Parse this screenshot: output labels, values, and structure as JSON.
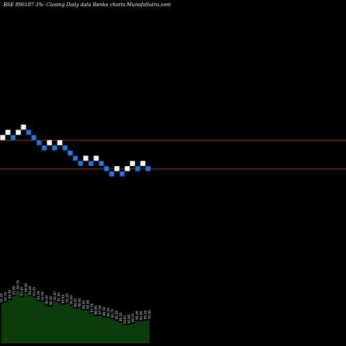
{
  "header": {
    "title": "BSE 890187 3%- Closing Daily data Renko charts MunafaSutra.com"
  },
  "colors": {
    "background": "#000000",
    "up_brick": "#ffffff",
    "down_brick": "#1e7be6",
    "brick_outline": "#0b3a8a",
    "level_line": "#8a3a14",
    "volume_fill": "#0b3d0b",
    "volume_label": "#ffffff"
  },
  "chart_data": [
    {
      "type": "renko",
      "title": "BSE 890187 3%- Closing Daily data Renko charts MunafaSutra.com",
      "bricks": [
        {
          "dir": "up",
          "level": 2
        },
        {
          "dir": "up",
          "level": 3
        },
        {
          "dir": "down",
          "level": 2
        },
        {
          "dir": "up",
          "level": 3
        },
        {
          "dir": "up",
          "level": 4
        },
        {
          "dir": "down",
          "level": 3
        },
        {
          "dir": "down",
          "level": 2
        },
        {
          "dir": "down",
          "level": 1
        },
        {
          "dir": "down",
          "level": 0
        },
        {
          "dir": "up",
          "level": 1
        },
        {
          "dir": "down",
          "level": 0
        },
        {
          "dir": "up",
          "level": 1
        },
        {
          "dir": "down",
          "level": 0
        },
        {
          "dir": "down",
          "level": -1
        },
        {
          "dir": "down",
          "level": -2
        },
        {
          "dir": "down",
          "level": -3
        },
        {
          "dir": "up",
          "level": -2
        },
        {
          "dir": "down",
          "level": -3
        },
        {
          "dir": "up",
          "level": -2
        },
        {
          "dir": "down",
          "level": -3
        },
        {
          "dir": "down",
          "level": -4
        },
        {
          "dir": "down",
          "level": -5
        },
        {
          "dir": "up",
          "level": -4
        },
        {
          "dir": "down",
          "level": -5
        },
        {
          "dir": "up",
          "level": -4
        },
        {
          "dir": "up",
          "level": -3
        },
        {
          "dir": "down",
          "level": -4
        },
        {
          "dir": "up",
          "level": -3
        },
        {
          "dir": "down",
          "level": -4
        }
      ],
      "horizontal_levels": [
        2,
        -3.5
      ]
    },
    {
      "type": "bar",
      "name": "volume",
      "labels": [
        "91.25",
        "91.70",
        "92.50",
        "93.80",
        "95.78",
        "93.45",
        "94.80",
        "93.80",
        "93.45",
        "92.08",
        "91.90",
        "90.50",
        "90.25",
        "91.97",
        "91.50",
        "90.85",
        "91.20",
        "90.48",
        "89.55",
        "89.50",
        "88.85",
        "88.90",
        "87.70",
        "86.90",
        "87.00",
        "86.50",
        "86.20",
        "85.75",
        "85.20",
        "84.50",
        "83.67",
        "83.85",
        "84.25",
        "85.08",
        "84.98",
        "85.30",
        "85.40"
      ],
      "values": [
        91.25,
        91.7,
        92.5,
        93.8,
        95.78,
        93.45,
        94.8,
        93.8,
        93.45,
        92.08,
        91.9,
        90.5,
        90.25,
        91.97,
        91.5,
        90.85,
        91.2,
        90.48,
        89.55,
        89.5,
        88.85,
        88.9,
        87.7,
        86.9,
        87.0,
        86.5,
        86.2,
        85.75,
        85.2,
        84.5,
        83.67,
        83.85,
        84.25,
        85.08,
        84.98,
        85.3,
        85.4
      ]
    }
  ]
}
